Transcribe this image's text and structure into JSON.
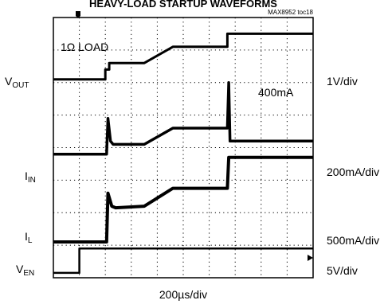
{
  "chart_data": {
    "type": "line",
    "title": "HEAVY-LOAD STARTUP WAVEFORMS",
    "figure_id": "MAX8952 toc18",
    "annotations": {
      "load": "1Ω LOAD",
      "current": "400mA"
    },
    "xlabel": "200µs/div",
    "x_unit": "div",
    "xlim": [
      0,
      10
    ],
    "grid": true,
    "grid_divisions": {
      "x": 10,
      "y": 8
    },
    "channels": [
      {
        "label": "V",
        "subscript": "OUT",
        "scale": "1V/div"
      },
      {
        "label": "I",
        "subscript": "IN",
        "scale": "200mA/div"
      },
      {
        "label": "I",
        "subscript": "L",
        "scale": "500mA/div"
      },
      {
        "label": "V",
        "subscript": "EN",
        "scale": "5V/div"
      }
    ],
    "series": [
      {
        "channel": "VOUT",
        "x": [
          0,
          2.0,
          2.0,
          2.15,
          2.15,
          3.5,
          4.6,
          6.7,
          6.7,
          10
        ],
        "y": [
          6.1,
          6.1,
          6.4,
          6.4,
          6.6,
          6.6,
          7.1,
          7.1,
          7.5,
          7.5
        ]
      },
      {
        "channel": "IIN",
        "x": [
          0,
          2.05,
          2.1,
          2.2,
          2.3,
          3.5,
          4.6,
          6.7,
          6.75,
          6.8,
          10
        ],
        "y": [
          3.8,
          3.8,
          4.9,
          4.2,
          4.1,
          4.1,
          4.6,
          4.6,
          6.0,
          4.2,
          4.2
        ]
      },
      {
        "channel": "IL",
        "x": [
          0,
          2.05,
          2.1,
          2.25,
          2.4,
          3.5,
          4.6,
          6.7,
          6.75,
          10
        ],
        "y": [
          1.1,
          1.1,
          2.6,
          2.2,
          2.15,
          2.2,
          2.75,
          2.75,
          3.7,
          3.7
        ]
      },
      {
        "channel": "VEN",
        "x": [
          0,
          1.0,
          1.0,
          10
        ],
        "y": [
          0.15,
          0.15,
          0.9,
          0.9
        ]
      }
    ]
  }
}
